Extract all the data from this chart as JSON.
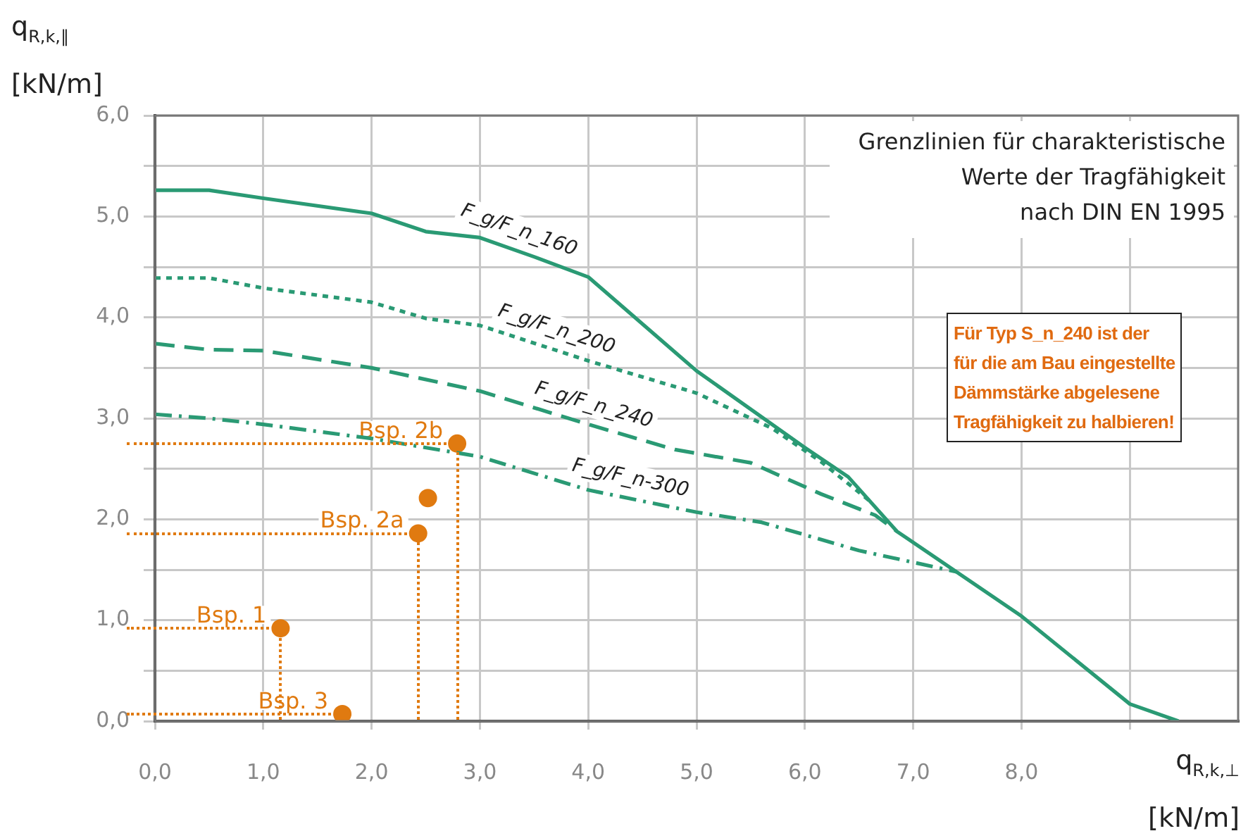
{
  "chart_data": {
    "type": "line",
    "xlabel": "q$_{R,k,⊥}$ [kN/m]",
    "ylabel": "q$_{R,k,∥}$ [kN/m]",
    "xlim": [
      0,
      10
    ],
    "ylim": [
      0,
      6
    ],
    "xticks": [
      {
        "value": 0,
        "label": "0,0"
      },
      {
        "value": 1,
        "label": "1,0"
      },
      {
        "value": 2,
        "label": "2,0"
      },
      {
        "value": 3,
        "label": "3,0"
      },
      {
        "value": 4,
        "label": "4,0"
      },
      {
        "value": 5,
        "label": "5,0"
      },
      {
        "value": 6,
        "label": "6,0"
      },
      {
        "value": 7,
        "label": "7,0"
      },
      {
        "value": 8,
        "label": "8,0"
      },
      {
        "value": 9,
        "label": null
      }
    ],
    "yticks": [
      {
        "value": 0,
        "label": "0,0"
      },
      {
        "value": 0.5,
        "label": null
      },
      {
        "value": 1,
        "label": "1,0"
      },
      {
        "value": 1.5,
        "label": null
      },
      {
        "value": 2,
        "label": "2,0"
      },
      {
        "value": 2.5,
        "label": null
      },
      {
        "value": 3,
        "label": "3,0"
      },
      {
        "value": 3.5,
        "label": null
      },
      {
        "value": 4,
        "label": "4,0"
      },
      {
        "value": 4.5,
        "label": null
      },
      {
        "value": 5,
        "label": "5,0"
      },
      {
        "value": 5.5,
        "label": null
      },
      {
        "value": 6,
        "label": "6,0"
      }
    ],
    "grid": true,
    "legend": false,
    "marker": "none",
    "series": [
      {
        "name": "F_g/F_n_160",
        "color": "#2a9a74",
        "line_style": "solid",
        "x": [
          0,
          0.5,
          1,
          2,
          2.5,
          3,
          3.5,
          4,
          5,
          6,
          6.4,
          6.85,
          8,
          9,
          9.45
        ],
        "values": [
          5.26,
          5.26,
          5.18,
          5.03,
          4.85,
          4.79,
          4.6,
          4.4,
          3.47,
          2.71,
          2.42,
          1.88,
          1.04,
          0.17,
          0
        ]
      },
      {
        "name": "F_g/F_n_200",
        "color": "#2a9a74",
        "line_style": "dotted",
        "x": [
          0,
          0.5,
          1,
          2,
          2.5,
          3,
          4,
          5,
          5.7,
          6.15,
          6.6
        ],
        "values": [
          4.39,
          4.39,
          4.29,
          4.15,
          3.99,
          3.92,
          3.57,
          3.25,
          2.9,
          2.57,
          2.18
        ]
      },
      {
        "name": "F_g/F_n_240",
        "color": "#2a9a74",
        "line_style": "dashed",
        "x": [
          0,
          0.5,
          1,
          2,
          3,
          4,
          4.8,
          5.5,
          6.15,
          6.65,
          6.85
        ],
        "values": [
          3.74,
          3.68,
          3.67,
          3.5,
          3.27,
          2.94,
          2.69,
          2.56,
          2.25,
          2.04,
          1.88
        ]
      },
      {
        "name": "F_g/F_n-300",
        "color": "#2a9a74",
        "line_style": "dashdot",
        "x": [
          0,
          0.5,
          1,
          2,
          3,
          4,
          5,
          5.6,
          6.5,
          7.4
        ],
        "values": [
          3.04,
          3.0,
          2.94,
          2.8,
          2.62,
          2.29,
          2.07,
          1.97,
          1.69,
          1.48
        ]
      },
      {
        "name": "Bsp. 2b",
        "type": "scatter",
        "color": "#e07a10",
        "marker": "circle",
        "x": [
          2.79
        ],
        "values": [
          2.75
        ]
      },
      {
        "type": "scatter",
        "color": "#e07a10",
        "marker": "circle",
        "x": [
          2.52
        ],
        "values": [
          2.21
        ]
      },
      {
        "name": "Bsp. 2a",
        "type": "scatter",
        "color": "#e07a10",
        "marker": "circle",
        "x": [
          2.43
        ],
        "values": [
          1.86
        ]
      },
      {
        "name": "Bsp. 1",
        "type": "scatter",
        "color": "#e07a10",
        "marker": "circle",
        "x": [
          1.16
        ],
        "values": [
          0.92
        ]
      },
      {
        "name": "Bsp. 3",
        "type": "scatter",
        "color": "#e07a10",
        "marker": "circle",
        "x": [
          1.73
        ],
        "values": [
          0.07
        ]
      }
    ],
    "annotations": [
      "Grenzlinien für charakteristische\nWerte der  Tragfähigkeit\nnach DIN EN 1995",
      "Für Typ S_n_240 ist der\nfür die am Bau eingestellte\nDämmstärke abgelesene\nTragfähigkeit zu halbieren!"
    ]
  }
}
